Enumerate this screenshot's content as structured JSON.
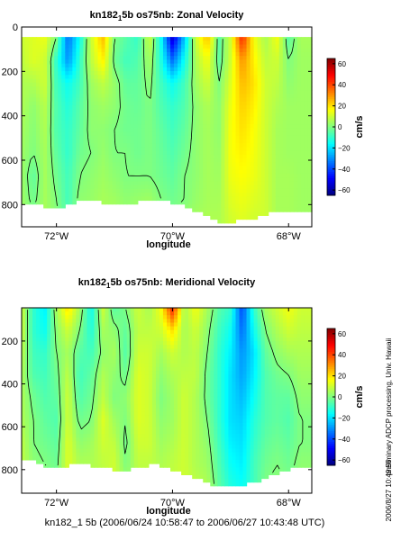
{
  "figure": {
    "footer": "kn182_1 5b (2006/06/24 10:58:47 to 2006/06/27 10:43:48 UTC)",
    "side_note": "preliminary ADCP processing,  Univ. Hawaii",
    "timestamp": "2006/8/27 10:49:56"
  },
  "chart_data": [
    {
      "type": "heatmap",
      "title_main": "kn182",
      "title_sub": "1",
      "title_rest": "5b os75nb: Zonal Velocity",
      "xlabel": "longitude",
      "ylabel": "",
      "x_ticks": [
        -72,
        -70,
        -68
      ],
      "x_tick_labels": [
        "72°W",
        "70°W",
        "68°W"
      ],
      "xlim": [
        -72.6,
        -67.6
      ],
      "y_ticks": [
        0,
        200,
        400,
        600,
        800
      ],
      "y_tick_labels": [
        "0",
        "200",
        "400",
        "600",
        "800"
      ],
      "ylim": [
        900,
        0
      ],
      "data_depth_top": 45,
      "colorbar": {
        "label": "cm/s",
        "ticks": [
          60,
          40,
          20,
          0,
          -20,
          -40,
          -60
        ],
        "tick_labels": [
          "60",
          "40",
          "20",
          "0",
          "−20",
          "−40",
          "−60"
        ],
        "range": [
          -65,
          65
        ],
        "colormap": "jet"
      },
      "zero_contour": true,
      "columns": [
        {
          "lon": -72.6,
          "u": [
            10,
            8,
            6,
            6,
            5,
            4,
            4,
            4,
            5
          ],
          "bottom": 790
        },
        {
          "lon": -72.4,
          "u": [
            12,
            12,
            6,
            2,
            1,
            0,
            -4,
            -2,
            3
          ],
          "bottom": 795
        },
        {
          "lon": -72.2,
          "u": [
            14,
            10,
            10,
            7,
            6,
            5,
            5,
            5,
            5
          ],
          "bottom": 810
        },
        {
          "lon": -72.0,
          "u": [
            0,
            -10,
            -8,
            -6,
            -6,
            -4,
            -2,
            0,
            2
          ],
          "bottom": 820
        },
        {
          "lon": -71.8,
          "u": [
            -35,
            -30,
            -15,
            -12,
            -10,
            -10,
            -8,
            -8,
            -5
          ],
          "bottom": 800
        },
        {
          "lon": -71.6,
          "u": [
            -15,
            -10,
            -8,
            -5,
            -4,
            -2,
            0,
            2,
            4
          ],
          "bottom": 780
        },
        {
          "lon": -71.4,
          "u": [
            10,
            8,
            4,
            2,
            2,
            0,
            2,
            3,
            4
          ],
          "bottom": 785
        },
        {
          "lon": -71.2,
          "u": [
            25,
            18,
            8,
            4,
            2,
            3,
            4,
            5,
            5
          ],
          "bottom": 790
        },
        {
          "lon": -71.0,
          "u": [
            0,
            -2,
            3,
            2,
            0,
            0,
            2,
            4,
            6
          ],
          "bottom": 800
        },
        {
          "lon": -70.8,
          "u": [
            -5,
            -8,
            -4,
            -2,
            -2,
            0,
            0,
            2,
            4
          ],
          "bottom": 805
        },
        {
          "lon": -70.6,
          "u": [
            -10,
            -6,
            -4,
            -3,
            -2,
            -2,
            0,
            3,
            5
          ],
          "bottom": 790
        },
        {
          "lon": -70.4,
          "u": [
            10,
            5,
            2,
            0,
            0,
            0,
            0,
            4,
            6
          ],
          "bottom": 780
        },
        {
          "lon": -70.2,
          "u": [
            -15,
            -12,
            -8,
            -6,
            -4,
            -3,
            -2,
            0,
            3
          ],
          "bottom": 780
        },
        {
          "lon": -70.0,
          "u": [
            -55,
            -35,
            -15,
            -10,
            -8,
            -6,
            -4,
            -2,
            2
          ],
          "bottom": 790
        },
        {
          "lon": -69.8,
          "u": [
            -25,
            -15,
            -8,
            -6,
            -4,
            -2,
            0,
            0,
            4
          ],
          "bottom": 800
        },
        {
          "lon": -69.6,
          "u": [
            10,
            6,
            4,
            2,
            2,
            2,
            2,
            3,
            5
          ],
          "bottom": 830
        },
        {
          "lon": -69.4,
          "u": [
            25,
            15,
            10,
            6,
            5,
            5,
            5,
            5,
            6
          ],
          "bottom": 850
        },
        {
          "lon": -69.2,
          "u": [
            -5,
            -4,
            0,
            2,
            2,
            3,
            4,
            5,
            6
          ],
          "bottom": 880
        },
        {
          "lon": -69.0,
          "u": [
            10,
            10,
            12,
            14,
            15,
            15,
            14,
            12,
            10
          ],
          "bottom": 880
        },
        {
          "lon": -68.8,
          "u": [
            45,
            30,
            25,
            22,
            20,
            18,
            16,
            14,
            12
          ],
          "bottom": 870
        },
        {
          "lon": -68.6,
          "u": [
            15,
            18,
            20,
            18,
            16,
            15,
            14,
            12,
            10
          ],
          "bottom": 860
        },
        {
          "lon": -68.4,
          "u": [
            5,
            8,
            10,
            10,
            10,
            10,
            10,
            10,
            10
          ],
          "bottom": 845
        },
        {
          "lon": -68.2,
          "u": [
            15,
            10,
            8,
            6,
            5,
            5,
            5,
            5,
            5
          ],
          "bottom": 830
        },
        {
          "lon": -68.0,
          "u": [
            -5,
            0,
            2,
            4,
            4,
            4,
            5,
            5,
            5
          ],
          "bottom": 830
        },
        {
          "lon": -67.8,
          "u": [
            5,
            4,
            4,
            4,
            4,
            4,
            4,
            4,
            4
          ],
          "bottom": 830
        },
        {
          "lon": -67.6,
          "u": [
            5,
            4,
            4,
            4,
            4,
            4,
            4,
            4,
            4
          ],
          "bottom": 830
        }
      ]
    },
    {
      "type": "heatmap",
      "title_main": "kn182",
      "title_sub": "1",
      "title_rest": "5b os75nb: Meridional Velocity",
      "xlabel": "longitude",
      "ylabel": "",
      "x_ticks": [
        -72,
        -70,
        -68
      ],
      "x_tick_labels": [
        "72°W",
        "70°W",
        "68°W"
      ],
      "xlim": [
        -72.6,
        -67.6
      ],
      "y_ticks": [
        200,
        400,
        600,
        800
      ],
      "y_tick_labels": [
        "200",
        "400",
        "600",
        "800"
      ],
      "ylim": [
        910,
        45
      ],
      "data_depth_top": 45,
      "colorbar": {
        "label": "cm/s",
        "ticks": [
          60,
          40,
          20,
          0,
          -20,
          -40,
          -60
        ],
        "tick_labels": [
          "60",
          "40",
          "20",
          "0",
          "−20",
          "−40",
          "−60"
        ],
        "range": [
          -65,
          65
        ],
        "colormap": "jet"
      },
      "zero_contour": true,
      "columns": [
        {
          "lon": -72.6,
          "u": [
            10,
            10,
            8,
            6,
            6,
            6,
            8,
            8,
            10
          ],
          "bottom": 760
        },
        {
          "lon": -72.4,
          "u": [
            -10,
            -10,
            -8,
            -6,
            -2,
            0,
            0,
            2,
            4
          ],
          "bottom": 760
        },
        {
          "lon": -72.2,
          "u": [
            -18,
            -15,
            -10,
            -8,
            -6,
            -4,
            -2,
            0,
            4
          ],
          "bottom": 780
        },
        {
          "lon": -72.0,
          "u": [
            5,
            2,
            0,
            -2,
            -4,
            -6,
            -4,
            -2,
            0
          ],
          "bottom": 790
        },
        {
          "lon": -71.8,
          "u": [
            20,
            10,
            5,
            8,
            10,
            10,
            12,
            12,
            12
          ],
          "bottom": 780
        },
        {
          "lon": -71.6,
          "u": [
            5,
            0,
            -5,
            -8,
            -6,
            -2,
            2,
            6,
            8
          ],
          "bottom": 770
        },
        {
          "lon": -71.4,
          "u": [
            -15,
            -12,
            -8,
            -4,
            -2,
            0,
            4,
            6,
            8
          ],
          "bottom": 780
        },
        {
          "lon": -71.2,
          "u": [
            10,
            5,
            2,
            6,
            8,
            12,
            10,
            8,
            8
          ],
          "bottom": 790
        },
        {
          "lon": -71.0,
          "u": [
            -5,
            2,
            5,
            2,
            0,
            4,
            8,
            10,
            10
          ],
          "bottom": 800
        },
        {
          "lon": -70.8,
          "u": [
            0,
            -4,
            -6,
            -2,
            2,
            0,
            -2,
            0,
            4
          ],
          "bottom": 800
        },
        {
          "lon": -70.6,
          "u": [
            10,
            8,
            10,
            12,
            12,
            12,
            10,
            8,
            8
          ],
          "bottom": 790
        },
        {
          "lon": -70.4,
          "u": [
            5,
            8,
            10,
            10,
            10,
            10,
            10,
            8,
            8
          ],
          "bottom": 780
        },
        {
          "lon": -70.2,
          "u": [
            15,
            10,
            5,
            2,
            0,
            2,
            4,
            6,
            8
          ],
          "bottom": 780
        },
        {
          "lon": -70.0,
          "u": [
            45,
            20,
            10,
            6,
            4,
            4,
            6,
            8,
            8
          ],
          "bottom": 800
        },
        {
          "lon": -69.8,
          "u": [
            5,
            5,
            6,
            8,
            10,
            10,
            10,
            10,
            10
          ],
          "bottom": 820
        },
        {
          "lon": -69.6,
          "u": [
            15,
            10,
            8,
            8,
            6,
            6,
            6,
            6,
            8
          ],
          "bottom": 840
        },
        {
          "lon": -69.4,
          "u": [
            5,
            2,
            0,
            -2,
            -2,
            0,
            2,
            4,
            6
          ],
          "bottom": 860
        },
        {
          "lon": -69.2,
          "u": [
            -5,
            -8,
            -10,
            -10,
            -10,
            -10,
            -8,
            -6,
            -4
          ],
          "bottom": 880
        },
        {
          "lon": -69.0,
          "u": [
            -10,
            -15,
            -18,
            -20,
            -20,
            -20,
            -18,
            -15,
            -12
          ],
          "bottom": 880
        },
        {
          "lon": -68.8,
          "u": [
            -40,
            -35,
            -30,
            -28,
            -25,
            -22,
            -20,
            -18,
            -15
          ],
          "bottom": 870
        },
        {
          "lon": -68.6,
          "u": [
            -10,
            -15,
            -20,
            -18,
            -15,
            -12,
            -10,
            -8,
            -8
          ],
          "bottom": 860
        },
        {
          "lon": -68.4,
          "u": [
            5,
            0,
            -4,
            -6,
            -6,
            -6,
            -4,
            -2,
            0
          ],
          "bottom": 840
        },
        {
          "lon": -68.2,
          "u": [
            10,
            6,
            2,
            -2,
            -4,
            -4,
            -2,
            0,
            2
          ],
          "bottom": 820
        },
        {
          "lon": -68.0,
          "u": [
            15,
            10,
            5,
            0,
            -4,
            -6,
            -4,
            -2,
            0
          ],
          "bottom": 800
        },
        {
          "lon": -67.8,
          "u": [
            10,
            8,
            6,
            4,
            2,
            0,
            0,
            2,
            2
          ],
          "bottom": 790
        },
        {
          "lon": -67.6,
          "u": [
            10,
            8,
            6,
            4,
            2,
            0,
            0,
            2,
            2
          ],
          "bottom": 790
        }
      ]
    }
  ]
}
